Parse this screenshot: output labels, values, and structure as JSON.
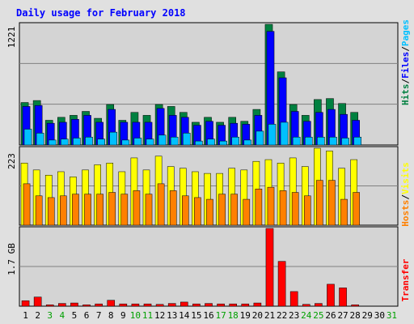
{
  "title": "Daily usage for February 2018",
  "days": [
    "1",
    "2",
    "3",
    "4",
    "5",
    "6",
    "7",
    "8",
    "9",
    "10",
    "11",
    "12",
    "13",
    "14",
    "15",
    "16",
    "17",
    "18",
    "19",
    "20",
    "21",
    "22",
    "23",
    "24",
    "25",
    "26",
    "27",
    "28",
    "29",
    "30",
    "31"
  ],
  "weekend_days": [
    "3",
    "4",
    "10",
    "11",
    "17",
    "18",
    "24",
    "25",
    "31"
  ],
  "right_labels": {
    "top": [
      "Hits",
      "/",
      "Files",
      "/",
      "Pages"
    ],
    "middle": [
      "Hosts",
      "/",
      "Visits"
    ],
    "bottom": [
      "Transfer"
    ]
  },
  "y_labels": {
    "top": "1221",
    "middle": "223",
    "bottom": "1.7 GB"
  },
  "colors": {
    "hits": "#008040",
    "files": "#0000ff",
    "pages": "#00c0ff",
    "visits": "#ffff00",
    "hosts": "#ff8000",
    "transfer": "#ff0000",
    "title": "#0000ff",
    "bg": "#e0e0e0",
    "panel": "#d4d4d4",
    "weekend": "#00a000",
    "weekday": "#000000"
  },
  "chart_data": [
    {
      "type": "bar",
      "name": "hits-files-pages",
      "categories": [
        "1",
        "2",
        "3",
        "4",
        "5",
        "6",
        "7",
        "8",
        "9",
        "10",
        "11",
        "12",
        "13",
        "14",
        "15",
        "16",
        "17",
        "18",
        "19",
        "20",
        "21",
        "22",
        "23",
        "24",
        "25",
        "26",
        "27",
        "28",
        "29",
        "30",
        "31"
      ],
      "ylim": [
        0,
        1221
      ],
      "series": [
        {
          "name": "Hits",
          "values": [
            430,
            450,
            250,
            280,
            300,
            340,
            270,
            410,
            250,
            330,
            300,
            410,
            390,
            330,
            230,
            280,
            230,
            280,
            240,
            360,
            1221,
            740,
            410,
            300,
            460,
            470,
            420,
            330,
            0,
            0,
            0
          ]
        },
        {
          "name": "Files",
          "values": [
            390,
            400,
            220,
            230,
            260,
            300,
            230,
            360,
            230,
            230,
            230,
            370,
            300,
            280,
            200,
            240,
            200,
            220,
            210,
            300,
            1150,
            680,
            340,
            240,
            330,
            360,
            310,
            250,
            0,
            0,
            0
          ]
        },
        {
          "name": "Pages",
          "values": [
            160,
            120,
            50,
            60,
            70,
            80,
            60,
            130,
            50,
            70,
            60,
            100,
            80,
            120,
            40,
            60,
            40,
            80,
            50,
            140,
            210,
            230,
            80,
            80,
            80,
            80,
            70,
            80,
            0,
            0,
            0
          ]
        }
      ]
    },
    {
      "type": "bar",
      "name": "hosts-visits",
      "categories": [
        "1",
        "2",
        "3",
        "4",
        "5",
        "6",
        "7",
        "8",
        "9",
        "10",
        "11",
        "12",
        "13",
        "14",
        "15",
        "16",
        "17",
        "18",
        "19",
        "20",
        "21",
        "22",
        "23",
        "24",
        "25",
        "26",
        "27",
        "28",
        "29",
        "30",
        "31"
      ],
      "ylim": [
        0,
        223
      ],
      "series": [
        {
          "name": "Visits",
          "values": [
            180,
            160,
            145,
            155,
            140,
            160,
            175,
            180,
            155,
            195,
            160,
            200,
            170,
            165,
            155,
            150,
            150,
            165,
            160,
            185,
            190,
            180,
            195,
            170,
            223,
            215,
            165,
            190,
            0,
            0,
            0
          ]
        },
        {
          "name": "Hosts",
          "values": [
            120,
            85,
            80,
            85,
            90,
            90,
            90,
            95,
            90,
            100,
            90,
            120,
            100,
            85,
            80,
            75,
            90,
            90,
            75,
            105,
            110,
            100,
            95,
            85,
            130,
            130,
            75,
            95,
            0,
            0,
            0
          ]
        }
      ]
    },
    {
      "type": "bar",
      "name": "transfer",
      "categories": [
        "1",
        "2",
        "3",
        "4",
        "5",
        "6",
        "7",
        "8",
        "9",
        "10",
        "11",
        "12",
        "13",
        "14",
        "15",
        "16",
        "17",
        "18",
        "19",
        "20",
        "21",
        "22",
        "23",
        "24",
        "25",
        "26",
        "27",
        "28",
        "29",
        "30",
        "31"
      ],
      "ylim": [
        0,
        1.7
      ],
      "ylabel": "GB",
      "series": [
        {
          "name": "Transfer",
          "values": [
            0.12,
            0.2,
            0.03,
            0.06,
            0.07,
            0.03,
            0.05,
            0.13,
            0.05,
            0.05,
            0.05,
            0.04,
            0.06,
            0.09,
            0.05,
            0.06,
            0.05,
            0.05,
            0.05,
            0.07,
            1.7,
            0.98,
            0.32,
            0.04,
            0.06,
            0.48,
            0.4,
            0.03,
            0,
            0,
            0
          ]
        }
      ]
    }
  ]
}
